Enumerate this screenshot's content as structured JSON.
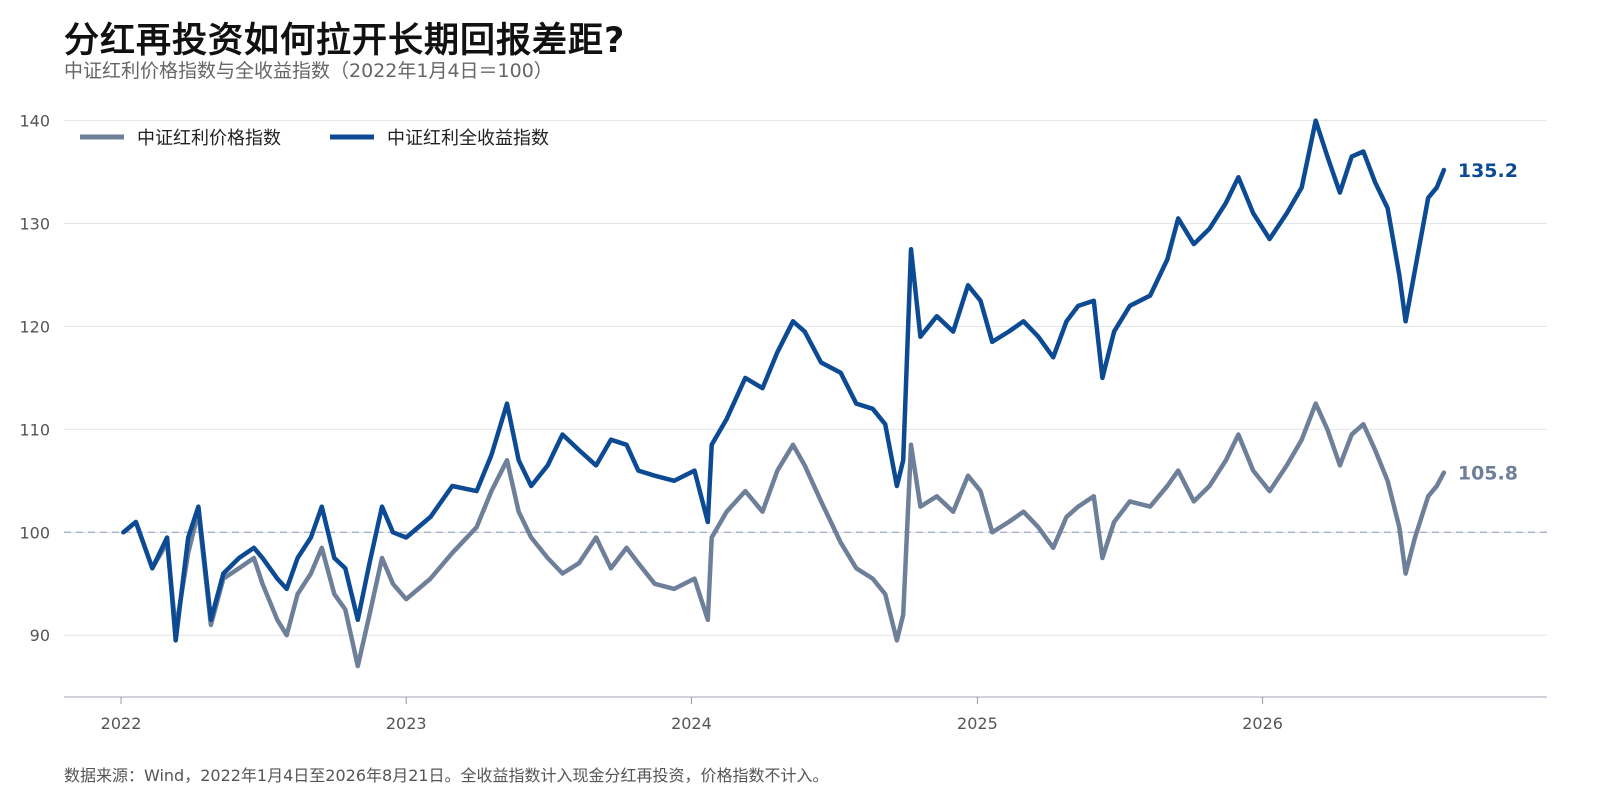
{
  "header": {
    "title": "分红再投资如何拉开长期回报差距?",
    "subtitle": "中证红利价格指数与全收益指数（2022年1月4日＝100）"
  },
  "footer": {
    "source": "数据来源：Wind，2022年1月4日至2026年8月21日。全收益指数计入现金分红再投资，价格指数不计入。"
  },
  "chart_data": {
    "type": "line",
    "title": "分红再投资如何拉开长期回报差距?",
    "subtitle": "中证红利价格指数与全收益指数（2022年1月4日＝100）",
    "xlabel": "",
    "ylabel": "",
    "x_ticks": [
      "2022",
      "2023",
      "2024",
      "2025",
      "2026"
    ],
    "y_ticks": [
      90,
      100,
      110,
      120,
      130,
      140
    ],
    "ylim": [
      84,
      142
    ],
    "xlim": [
      "2021-10-20",
      "2026-12-31"
    ],
    "baseline": 100,
    "grid": "horizontal",
    "legend_position": "top-left",
    "series": [
      {
        "name": "中证红利价格指数",
        "color": "#6e7f99",
        "end_label": "105.8",
        "points": [
          [
            "2022-01-04",
            100.0
          ],
          [
            "2022-01-20",
            101.0
          ],
          [
            "2022-02-10",
            96.5
          ],
          [
            "2022-03-01",
            99.0
          ],
          [
            "2022-03-12",
            90.5
          ],
          [
            "2022-03-28",
            98.0
          ],
          [
            "2022-04-10",
            102.0
          ],
          [
            "2022-04-26",
            91.0
          ],
          [
            "2022-05-12",
            95.5
          ],
          [
            "2022-06-01",
            96.5
          ],
          [
            "2022-06-20",
            97.5
          ],
          [
            "2022-07-01",
            95.0
          ],
          [
            "2022-07-20",
            91.5
          ],
          [
            "2022-08-01",
            90.0
          ],
          [
            "2022-08-15",
            94.0
          ],
          [
            "2022-09-01",
            96.0
          ],
          [
            "2022-09-15",
            98.5
          ],
          [
            "2022-10-01",
            94.0
          ],
          [
            "2022-10-15",
            92.5
          ],
          [
            "2022-10-31",
            87.0
          ],
          [
            "2022-11-15",
            92.0
          ],
          [
            "2022-12-01",
            97.5
          ],
          [
            "2022-12-15",
            95.0
          ],
          [
            "2023-01-01",
            93.5
          ],
          [
            "2023-02-01",
            95.5
          ],
          [
            "2023-03-01",
            98.0
          ],
          [
            "2023-04-01",
            100.5
          ],
          [
            "2023-04-20",
            104.0
          ],
          [
            "2023-05-10",
            107.0
          ],
          [
            "2023-05-25",
            102.0
          ],
          [
            "2023-06-10",
            99.5
          ],
          [
            "2023-07-01",
            97.5
          ],
          [
            "2023-07-20",
            96.0
          ],
          [
            "2023-08-10",
            97.0
          ],
          [
            "2023-09-01",
            99.5
          ],
          [
            "2023-09-20",
            96.5
          ],
          [
            "2023-10-10",
            98.5
          ],
          [
            "2023-10-25",
            97.0
          ],
          [
            "2023-11-15",
            95.0
          ],
          [
            "2023-12-10",
            94.5
          ],
          [
            "2024-01-05",
            95.5
          ],
          [
            "2024-01-22",
            91.5
          ],
          [
            "2024-01-27",
            99.5
          ],
          [
            "2024-02-15",
            102.0
          ],
          [
            "2024-03-10",
            104.0
          ],
          [
            "2024-04-01",
            102.0
          ],
          [
            "2024-04-20",
            106.0
          ],
          [
            "2024-05-10",
            108.5
          ],
          [
            "2024-05-25",
            106.5
          ],
          [
            "2024-06-15",
            103.0
          ],
          [
            "2024-07-10",
            99.0
          ],
          [
            "2024-07-30",
            96.5
          ],
          [
            "2024-08-20",
            95.5
          ],
          [
            "2024-09-05",
            94.0
          ],
          [
            "2024-09-20",
            89.5
          ],
          [
            "2024-09-28",
            92.0
          ],
          [
            "2024-10-08",
            108.5
          ],
          [
            "2024-10-20",
            102.5
          ],
          [
            "2024-11-10",
            103.5
          ],
          [
            "2024-12-01",
            102.0
          ],
          [
            "2024-12-20",
            105.5
          ],
          [
            "2025-01-05",
            104.0
          ],
          [
            "2025-01-20",
            100.0
          ],
          [
            "2025-02-10",
            101.0
          ],
          [
            "2025-03-01",
            102.0
          ],
          [
            "2025-03-20",
            100.5
          ],
          [
            "2025-04-08",
            98.5
          ],
          [
            "2025-04-25",
            101.5
          ],
          [
            "2025-05-10",
            102.5
          ],
          [
            "2025-05-30",
            103.5
          ],
          [
            "2025-06-10",
            97.5
          ],
          [
            "2025-06-25",
            101.0
          ],
          [
            "2025-07-15",
            103.0
          ],
          [
            "2025-08-10",
            102.5
          ],
          [
            "2025-09-01",
            104.5
          ],
          [
            "2025-09-15",
            106.0
          ],
          [
            "2025-10-05",
            103.0
          ],
          [
            "2025-10-25",
            104.5
          ],
          [
            "2025-11-15",
            107.0
          ],
          [
            "2025-12-01",
            109.5
          ],
          [
            "2025-12-20",
            106.0
          ],
          [
            "2026-01-10",
            104.0
          ],
          [
            "2026-02-01",
            106.5
          ],
          [
            "2026-02-20",
            109.0
          ],
          [
            "2026-03-10",
            112.5
          ],
          [
            "2026-03-25",
            110.0
          ],
          [
            "2026-04-10",
            106.5
          ],
          [
            "2026-04-25",
            109.5
          ],
          [
            "2026-05-10",
            110.5
          ],
          [
            "2026-05-25",
            108.0
          ],
          [
            "2026-06-10",
            105.0
          ],
          [
            "2026-06-25",
            100.5
          ],
          [
            "2026-07-03",
            96.0
          ],
          [
            "2026-07-15",
            99.5
          ],
          [
            "2026-08-01",
            103.5
          ],
          [
            "2026-08-12",
            104.5
          ],
          [
            "2026-08-21",
            105.8
          ]
        ]
      },
      {
        "name": "中证红利全收益指数",
        "color": "#0d4a94",
        "end_label": "135.2",
        "points": [
          [
            "2022-01-04",
            100.0
          ],
          [
            "2022-01-20",
            101.0
          ],
          [
            "2022-02-10",
            96.5
          ],
          [
            "2022-03-01",
            99.5
          ],
          [
            "2022-03-12",
            89.5
          ],
          [
            "2022-03-28",
            99.5
          ],
          [
            "2022-04-10",
            102.5
          ],
          [
            "2022-04-26",
            91.5
          ],
          [
            "2022-05-12",
            96.0
          ],
          [
            "2022-06-01",
            97.5
          ],
          [
            "2022-06-20",
            98.5
          ],
          [
            "2022-07-01",
            97.5
          ],
          [
            "2022-07-20",
            95.5
          ],
          [
            "2022-08-01",
            94.5
          ],
          [
            "2022-08-15",
            97.5
          ],
          [
            "2022-09-01",
            99.5
          ],
          [
            "2022-09-15",
            102.5
          ],
          [
            "2022-10-01",
            97.5
          ],
          [
            "2022-10-15",
            96.5
          ],
          [
            "2022-10-31",
            91.5
          ],
          [
            "2022-11-15",
            97.0
          ],
          [
            "2022-12-01",
            102.5
          ],
          [
            "2022-12-15",
            100.0
          ],
          [
            "2023-01-01",
            99.5
          ],
          [
            "2023-02-01",
            101.5
          ],
          [
            "2023-03-01",
            104.5
          ],
          [
            "2023-04-01",
            104.0
          ],
          [
            "2023-04-20",
            107.5
          ],
          [
            "2023-05-10",
            112.5
          ],
          [
            "2023-05-25",
            107.0
          ],
          [
            "2023-06-10",
            104.5
          ],
          [
            "2023-07-01",
            106.5
          ],
          [
            "2023-07-20",
            109.5
          ],
          [
            "2023-08-10",
            108.0
          ],
          [
            "2023-09-01",
            106.5
          ],
          [
            "2023-09-20",
            109.0
          ],
          [
            "2023-10-10",
            108.5
          ],
          [
            "2023-10-25",
            106.0
          ],
          [
            "2023-11-15",
            105.5
          ],
          [
            "2023-12-10",
            105.0
          ],
          [
            "2024-01-05",
            106.0
          ],
          [
            "2024-01-22",
            101.0
          ],
          [
            "2024-01-27",
            108.5
          ],
          [
            "2024-02-15",
            111.0
          ],
          [
            "2024-03-10",
            115.0
          ],
          [
            "2024-04-01",
            114.0
          ],
          [
            "2024-04-20",
            117.5
          ],
          [
            "2024-05-10",
            120.5
          ],
          [
            "2024-05-25",
            119.5
          ],
          [
            "2024-06-15",
            116.5
          ],
          [
            "2024-07-10",
            115.5
          ],
          [
            "2024-07-30",
            112.5
          ],
          [
            "2024-08-20",
            112.0
          ],
          [
            "2024-09-05",
            110.5
          ],
          [
            "2024-09-20",
            104.5
          ],
          [
            "2024-09-28",
            107.0
          ],
          [
            "2024-10-08",
            127.5
          ],
          [
            "2024-10-20",
            119.0
          ],
          [
            "2024-11-10",
            121.0
          ],
          [
            "2024-12-01",
            119.5
          ],
          [
            "2024-12-20",
            124.0
          ],
          [
            "2025-01-05",
            122.5
          ],
          [
            "2025-01-20",
            118.5
          ],
          [
            "2025-02-10",
            119.5
          ],
          [
            "2025-03-01",
            120.5
          ],
          [
            "2025-03-20",
            119.0
          ],
          [
            "2025-04-08",
            117.0
          ],
          [
            "2025-04-25",
            120.5
          ],
          [
            "2025-05-10",
            122.0
          ],
          [
            "2025-05-30",
            122.5
          ],
          [
            "2025-06-10",
            115.0
          ],
          [
            "2025-06-25",
            119.5
          ],
          [
            "2025-07-15",
            122.0
          ],
          [
            "2025-08-10",
            123.0
          ],
          [
            "2025-09-01",
            126.5
          ],
          [
            "2025-09-15",
            130.5
          ],
          [
            "2025-10-05",
            128.0
          ],
          [
            "2025-10-25",
            129.5
          ],
          [
            "2025-11-15",
            132.0
          ],
          [
            "2025-12-01",
            134.5
          ],
          [
            "2025-12-20",
            131.0
          ],
          [
            "2026-01-10",
            128.5
          ],
          [
            "2026-02-01",
            131.0
          ],
          [
            "2026-02-20",
            133.5
          ],
          [
            "2026-03-10",
            140.0
          ],
          [
            "2026-03-25",
            136.5
          ],
          [
            "2026-04-10",
            133.0
          ],
          [
            "2026-04-25",
            136.5
          ],
          [
            "2026-05-10",
            137.0
          ],
          [
            "2026-05-25",
            134.0
          ],
          [
            "2026-06-10",
            131.5
          ],
          [
            "2026-06-25",
            125.0
          ],
          [
            "2026-07-03",
            120.5
          ],
          [
            "2026-07-15",
            125.5
          ],
          [
            "2026-08-01",
            132.5
          ],
          [
            "2026-08-12",
            133.5
          ],
          [
            "2026-08-21",
            135.2
          ]
        ]
      }
    ]
  }
}
